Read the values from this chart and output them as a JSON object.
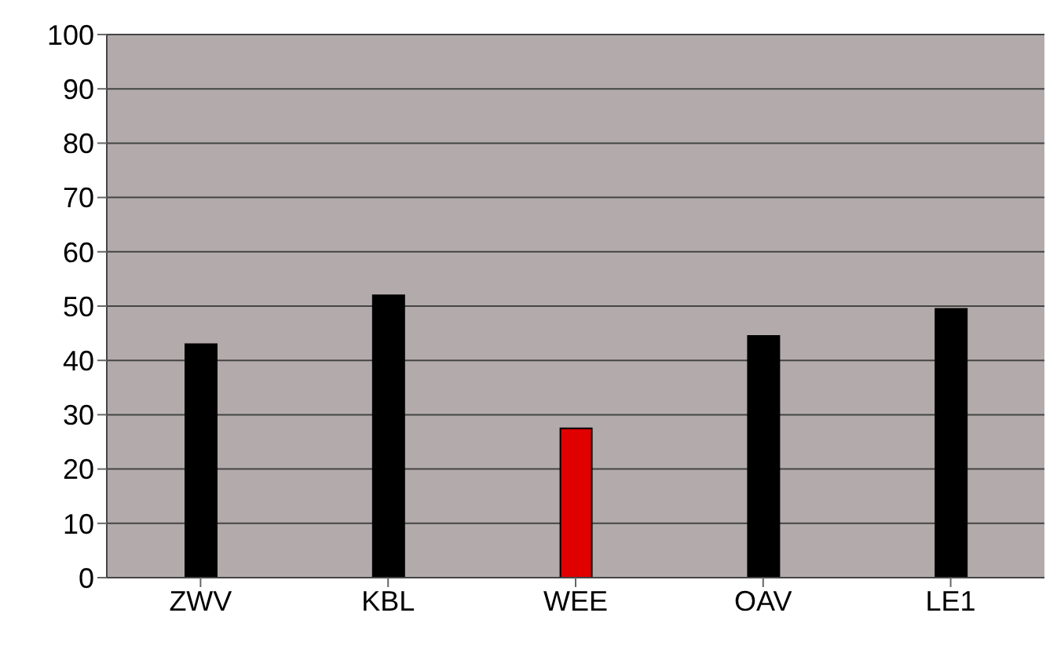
{
  "chart_data": {
    "type": "bar",
    "categories": [
      "ZWV",
      "KBL",
      "WEE",
      "OAV",
      "LE1"
    ],
    "values": [
      43,
      52,
      27.5,
      44.5,
      49.5
    ],
    "colors": [
      "#000000",
      "#000000",
      "#e00000",
      "#000000",
      "#000000"
    ],
    "ylim": [
      0,
      100
    ],
    "yticks": [
      0,
      10,
      20,
      30,
      40,
      50,
      60,
      70,
      80,
      90,
      100
    ],
    "grid": "y"
  }
}
